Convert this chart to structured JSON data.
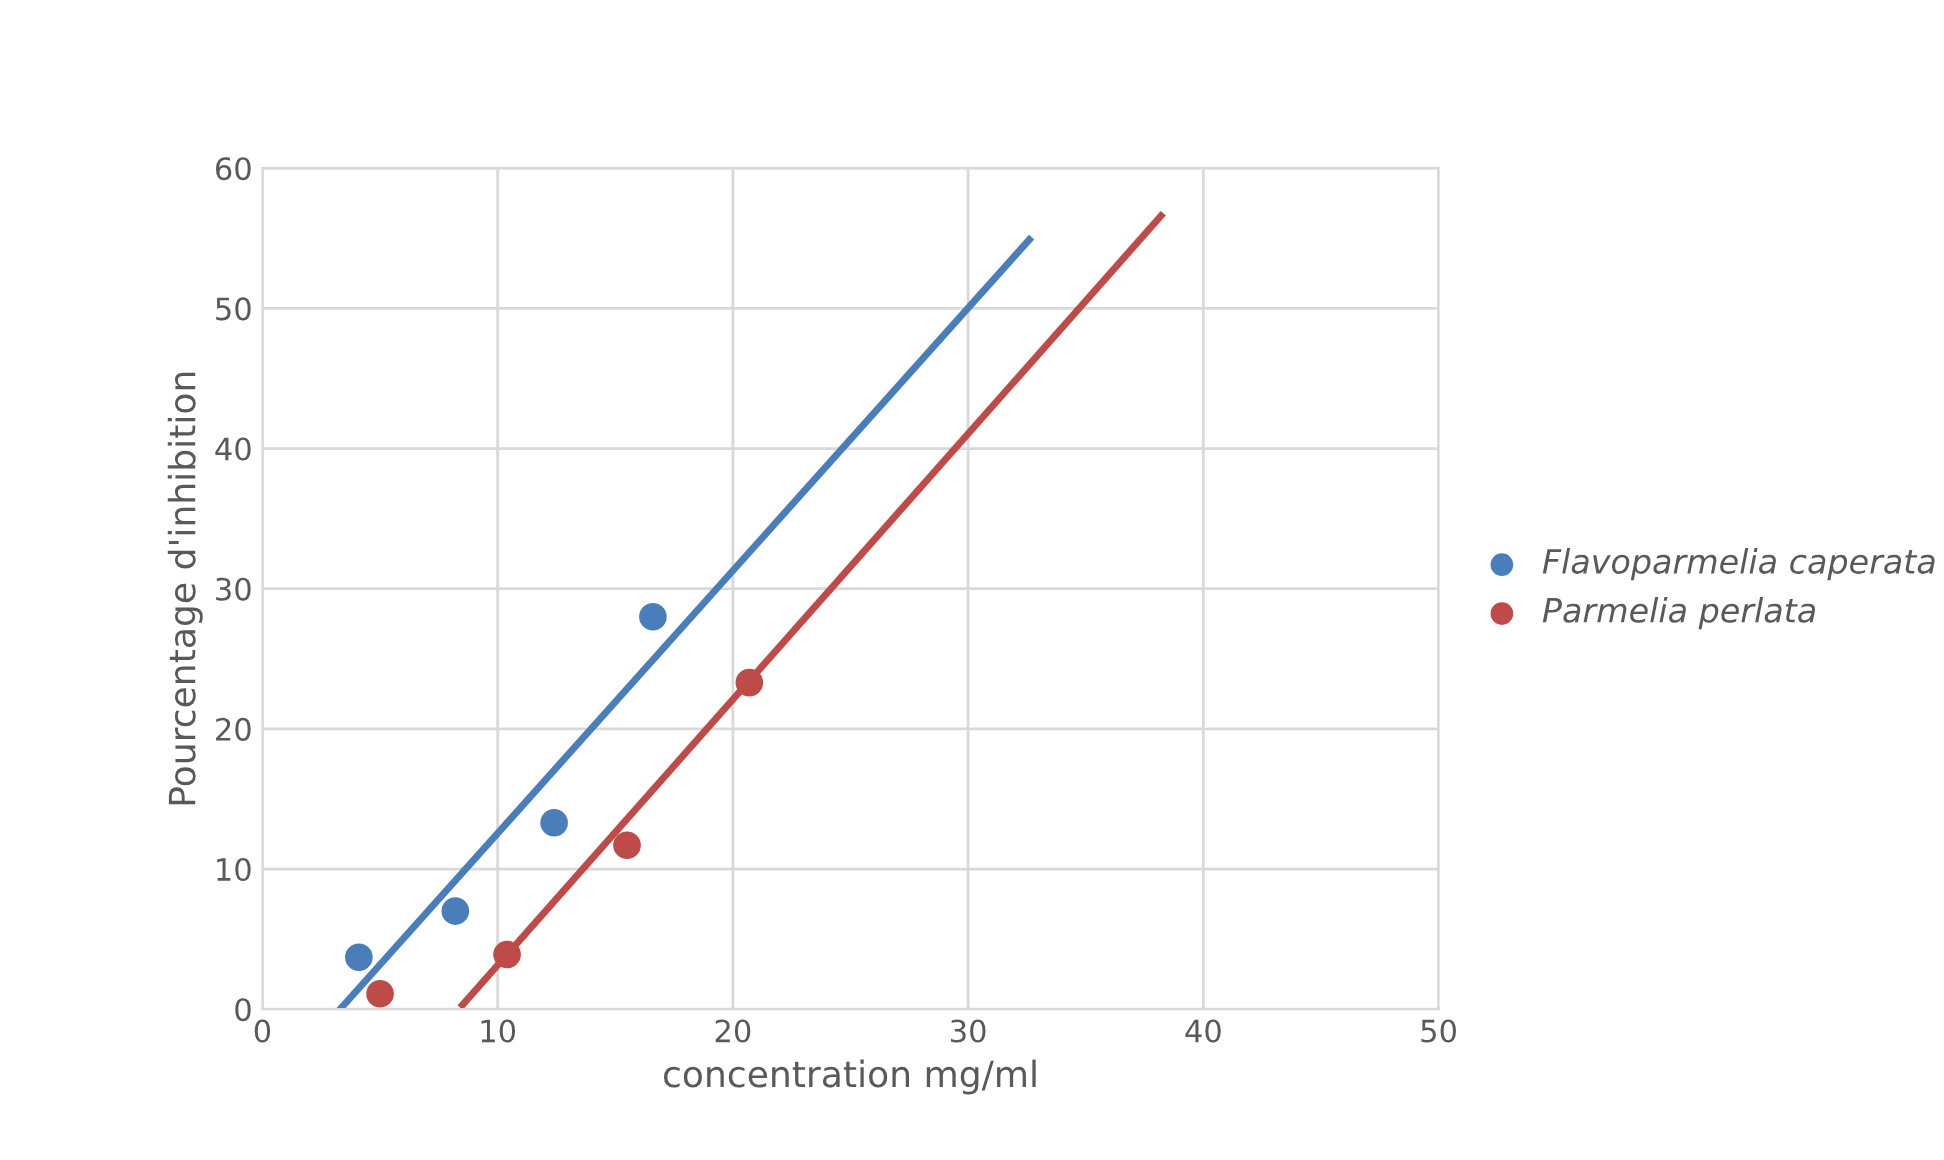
{
  "chart_data": {
    "type": "scatter",
    "xlabel": "concentration mg/ml",
    "ylabel": "Pourcentage d'inhibition",
    "xlim": [
      0,
      50
    ],
    "ylim": [
      0,
      60
    ],
    "xticks": [
      0,
      10,
      20,
      30,
      40,
      50
    ],
    "yticks": [
      0,
      10,
      20,
      30,
      40,
      50,
      60
    ],
    "grid": true,
    "legend": "right",
    "series": [
      {
        "name": "Flavoparmelia caperata",
        "color": "#4a7ebb",
        "marker": "circle",
        "x": [
          4.1,
          8.2,
          12.4,
          16.6
        ],
        "values": [
          3.7,
          7.0,
          13.3,
          28.0
        ]
      },
      {
        "name": "Parmelia perlata",
        "color": "#be4b48",
        "marker": "circle",
        "x": [
          5.0,
          10.4,
          15.5,
          20.7
        ],
        "values": [
          1.1,
          3.9,
          11.7,
          23.3
        ]
      },
      {
        "type": "line",
        "color": "#4a7ebb",
        "marker": "none",
        "x": [
          3.3,
          32.6
        ],
        "values": [
          0,
          54.9
        ]
      },
      {
        "type": "line",
        "color": "#be4b48",
        "marker": "none",
        "x": [
          8.5,
          38.2
        ],
        "values": [
          0.3,
          56.6
        ]
      }
    ]
  }
}
